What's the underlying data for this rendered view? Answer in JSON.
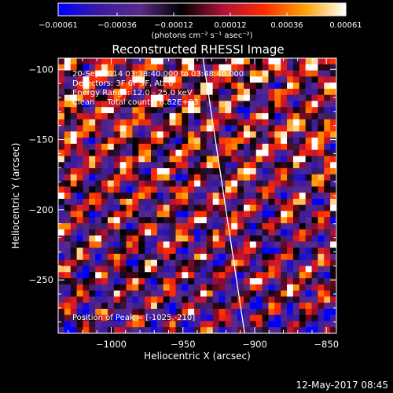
{
  "chart_data": {
    "type": "heatmap",
    "title": "Reconstructed RHESSI Image",
    "xlabel": "Heliocentric X (arcsec)",
    "ylabel": "Heliocentric Y (arcsec)",
    "xlim": [
      -1037,
      -843
    ],
    "ylim": [
      -288,
      -92
    ],
    "x_ticks": [
      -1000,
      -950,
      -900,
      -850
    ],
    "y_ticks": [
      -100,
      -150,
      -200,
      -250
    ],
    "x_tick_labels": [
      "−1000",
      "−950",
      "−900",
      "−850"
    ],
    "y_tick_labels": [
      "−100",
      "−150",
      "−200",
      "−250"
    ],
    "colorbar": {
      "range": [
        -0.00061,
        0.00061
      ],
      "ticks": [
        -0.00061,
        -0.00036,
        -0.00012,
        0.00012,
        0.00036,
        0.00061
      ],
      "tick_labels": [
        "−0.00061",
        "−0.00036",
        "−0.00012",
        "0.00012",
        "0.00036",
        "0.00061"
      ],
      "unit_label": "(photons cm⁻² s⁻¹ asec⁻²)",
      "colors": [
        "#0000ff",
        "#3a1aa0",
        "#5a2a8a",
        "#000000",
        "#b0103a",
        "#ff2a00",
        "#ffa000",
        "#ffffff"
      ]
    },
    "info_lines": [
      "20-Sep-2014 03:38:40.000 to 03:48:40.000",
      "Detectors: 3F 6F 9F, Att 0",
      "Energy Range: 12.0 - 25.0 keV",
      "Clean     Total counts: 6.82E+03"
    ],
    "peak_text": "Position of Peak = [-1025,-210]",
    "limb_line": [
      [
        -936,
        -92
      ],
      [
        -907,
        -288
      ]
    ]
  },
  "footer": {
    "date": "12-May-2017 08:45"
  }
}
